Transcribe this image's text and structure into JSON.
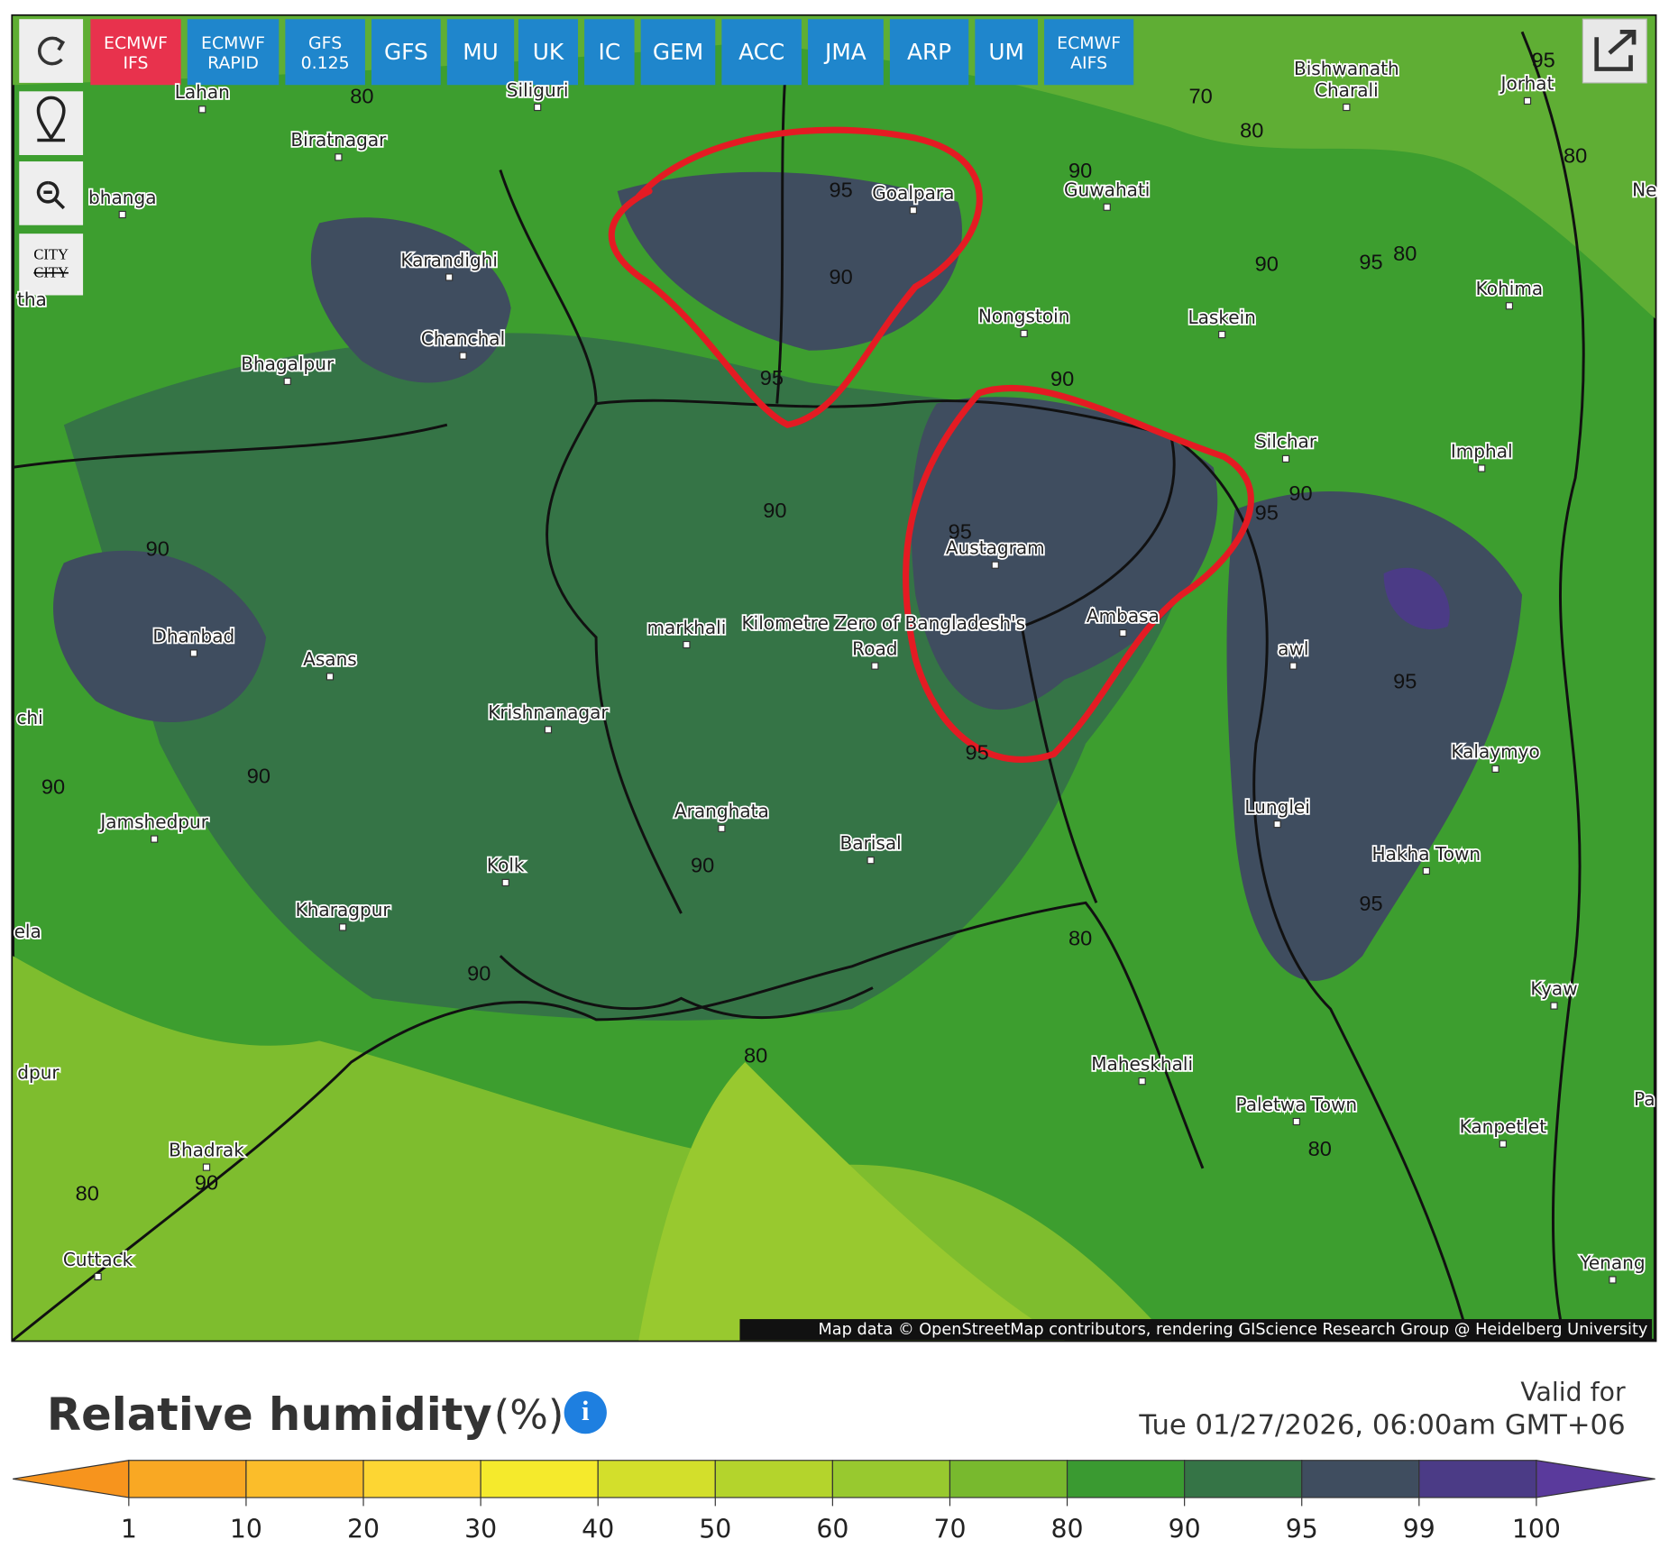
{
  "model_buttons": [
    [
      "ECMWF",
      "IFS"
    ],
    [
      "ECMWF",
      "RAPID"
    ],
    [
      "GFS",
      "0.125"
    ],
    [
      "GFS"
    ],
    [
      "MU"
    ],
    [
      "UK"
    ],
    [
      "IC"
    ],
    [
      "GEM"
    ],
    [
      "ACC"
    ],
    [
      "JMA"
    ],
    [
      "ARP"
    ],
    [
      "UM"
    ],
    [
      "ECMWF",
      "AIFS"
    ]
  ],
  "side_tools": {
    "city_toggle": [
      "CITY",
      "CITY"
    ]
  },
  "map": {
    "cities": [
      "Lahan",
      "Siliguri",
      "Biratnagar",
      "bhanga",
      "Karandighi",
      "Goalpara",
      "Guwahati",
      "Bishwanath",
      "Charali",
      "Jorhat",
      "Kohima",
      "Nongstoin",
      "Laskein",
      "Chanchal",
      "Bhagalpur",
      "Silchar",
      "Imphal",
      "Austagram",
      "Dhanbad",
      "Asans",
      "markhali",
      "Krishnanagar",
      "Ambasa",
      "awl",
      "Kalaymyo",
      "Lunglei",
      "Jamshedpur",
      "Aranghata",
      "Barisal",
      "Kolk",
      "Hakha Town",
      "Kharagpur",
      "Kyaw",
      "Maheskhali",
      "Paletwa Town",
      "Kanpetlet",
      "Bhadrak",
      "Cuttack",
      "Yenang",
      "Kilometre Zero of Bangladesh's",
      "Road",
      "tha",
      "chi",
      "ela",
      "dpur",
      "Pa",
      "Ne"
    ],
    "contour_labels": [
      "80",
      "70",
      "80",
      "80",
      "90",
      "95",
      "90",
      "90",
      "95",
      "80",
      "95",
      "90",
      "90",
      "95",
      "90",
      "95",
      "90",
      "90",
      "90",
      "95",
      "95",
      "90",
      "95",
      "80",
      "90",
      "80",
      "80",
      "90",
      "80",
      "95"
    ],
    "attribution": "Map data © OpenStreetMap contributors, rendering GIScience Research Group @ Heidelberg University"
  },
  "legend": {
    "title": "Relative humidity",
    "unit": "(%)",
    "valid_label": "Valid for",
    "valid_time": "Tue 01/27/2026, 06:00am GMT+06",
    "ticks": [
      "1",
      "10",
      "20",
      "30",
      "40",
      "50",
      "60",
      "70",
      "80",
      "90",
      "95",
      "99",
      "100"
    ],
    "colors": [
      "#f7941d",
      "#f9a823",
      "#fbbd2a",
      "#fdd633",
      "#f5ea2c",
      "#d3df2b",
      "#b4d42c",
      "#98c92f",
      "#78b92e",
      "#3a9a31",
      "#357446",
      "#3f4d5f",
      "#4b3b86",
      "#5a3a9c"
    ]
  }
}
